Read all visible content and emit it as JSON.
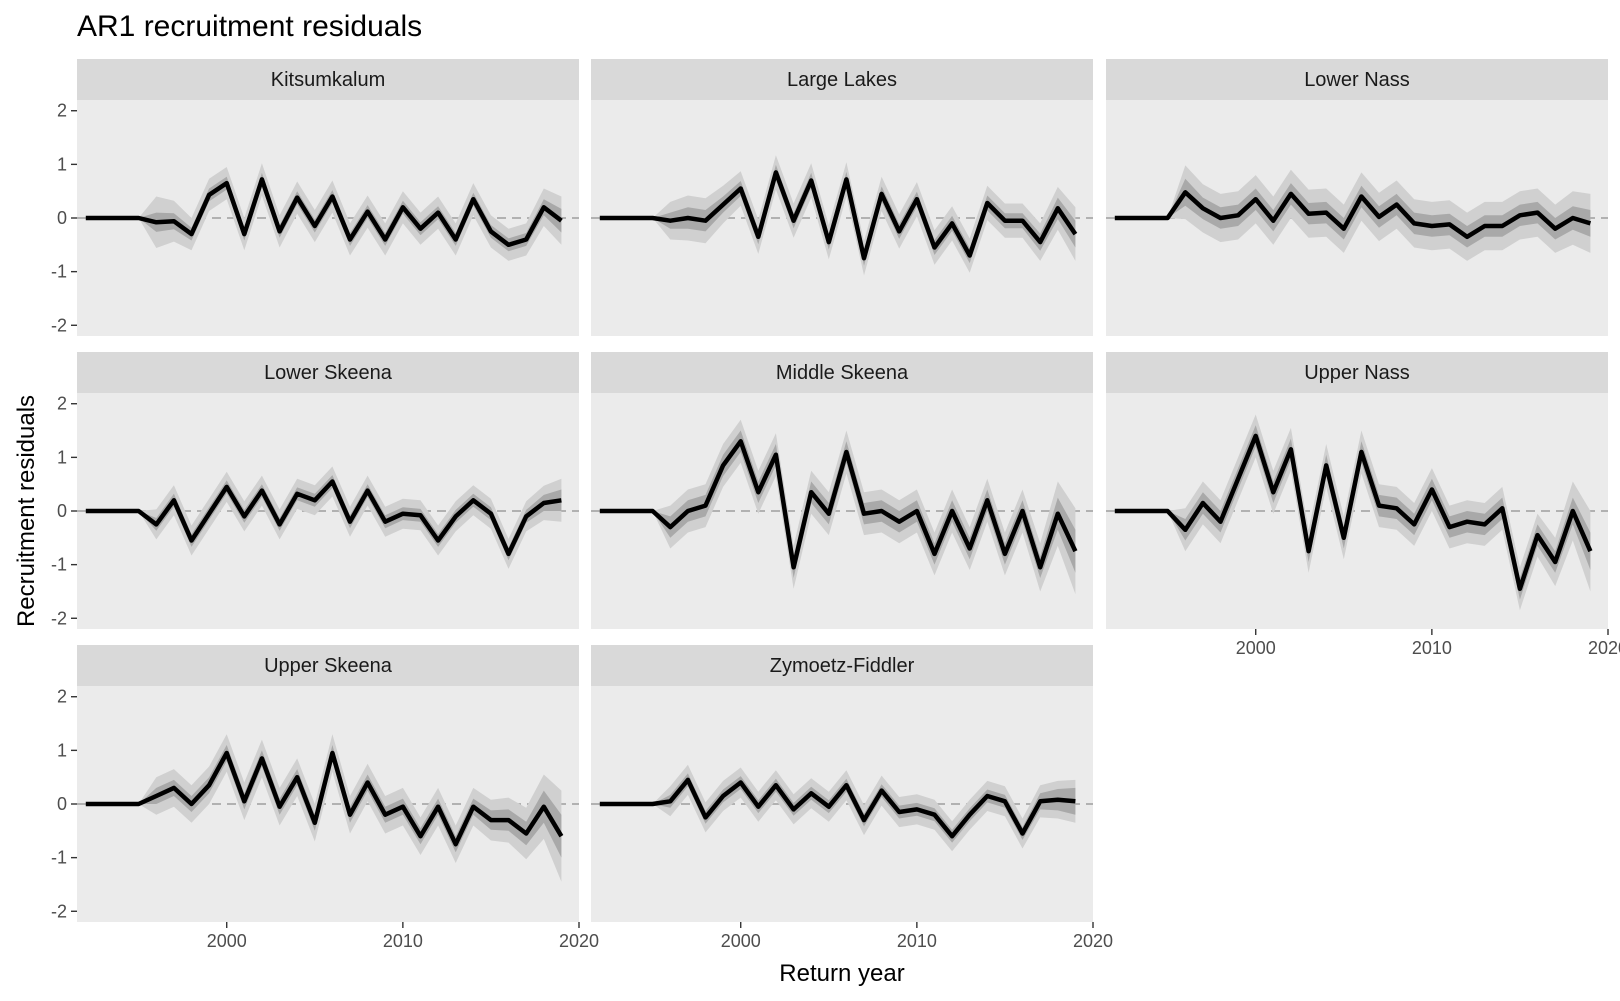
{
  "chart_data": {
    "type": "line",
    "title": "AR1 recruitment residuals",
    "xlabel": "Return year",
    "ylabel": "Recruitment residuals",
    "xlim": [
      1991.5,
      2020
    ],
    "ylim": [
      -2.2,
      2.2
    ],
    "x_ticks": [
      2000,
      2010,
      2020
    ],
    "y_ticks": [
      -2,
      -1,
      0,
      1,
      2
    ],
    "reference_line": 0,
    "grid": false,
    "x": [
      1992,
      1993,
      1994,
      1995,
      1996,
      1997,
      1998,
      1999,
      2000,
      2001,
      2002,
      2003,
      2004,
      2005,
      2006,
      2007,
      2008,
      2009,
      2010,
      2011,
      2012,
      2013,
      2014,
      2015,
      2016,
      2017,
      2018,
      2019
    ],
    "panels": [
      {
        "name": "Kitsumkalum",
        "values": [
          0,
          0,
          0,
          0,
          -0.08,
          -0.06,
          -0.3,
          0.43,
          0.65,
          -0.3,
          0.72,
          -0.25,
          0.38,
          -0.15,
          0.4,
          -0.4,
          0.12,
          -0.4,
          0.2,
          -0.2,
          0.1,
          -0.4,
          0.35,
          -0.25,
          -0.5,
          -0.4,
          0.2,
          -0.05
        ],
        "band_inner": [
          0,
          0,
          0,
          0,
          0.18,
          0.15,
          0.12,
          0.12,
          0.12,
          0.12,
          0.12,
          0.12,
          0.12,
          0.12,
          0.12,
          0.12,
          0.12,
          0.12,
          0.12,
          0.12,
          0.12,
          0.12,
          0.12,
          0.12,
          0.12,
          0.12,
          0.15,
          0.22
        ],
        "band_outer": [
          0,
          0,
          0,
          0,
          0.48,
          0.38,
          0.3,
          0.3,
          0.3,
          0.3,
          0.3,
          0.3,
          0.3,
          0.3,
          0.3,
          0.3,
          0.3,
          0.3,
          0.3,
          0.3,
          0.3,
          0.3,
          0.3,
          0.3,
          0.3,
          0.3,
          0.35,
          0.45
        ]
      },
      {
        "name": "Large Lakes",
        "values": [
          0,
          0,
          0,
          0,
          -0.05,
          0,
          -0.05,
          0.25,
          0.55,
          -0.35,
          0.85,
          -0.05,
          0.7,
          -0.45,
          0.72,
          -0.75,
          0.45,
          -0.25,
          0.35,
          -0.55,
          -0.1,
          -0.7,
          0.28,
          -0.05,
          -0.05,
          -0.45,
          0.18,
          -0.3
        ],
        "band_inner": [
          0,
          0,
          0,
          0,
          0.15,
          0.2,
          0.2,
          0.15,
          0.14,
          0.14,
          0.14,
          0.14,
          0.14,
          0.14,
          0.14,
          0.14,
          0.14,
          0.14,
          0.14,
          0.14,
          0.14,
          0.14,
          0.14,
          0.14,
          0.14,
          0.16,
          0.2,
          0.25
        ],
        "band_outer": [
          0,
          0,
          0,
          0,
          0.35,
          0.42,
          0.42,
          0.35,
          0.32,
          0.32,
          0.32,
          0.32,
          0.32,
          0.32,
          0.32,
          0.32,
          0.32,
          0.32,
          0.32,
          0.32,
          0.32,
          0.32,
          0.32,
          0.32,
          0.32,
          0.35,
          0.4,
          0.5
        ]
      },
      {
        "name": "Lower Nass",
        "values": [
          0,
          0,
          0,
          0,
          0.48,
          0.18,
          0,
          0.05,
          0.35,
          -0.05,
          0.45,
          0.08,
          0.1,
          -0.2,
          0.4,
          0.02,
          0.25,
          -0.1,
          -0.15,
          -0.12,
          -0.35,
          -0.15,
          -0.15,
          0.05,
          0.1,
          -0.2,
          0,
          -0.1
        ],
        "band_inner": [
          0,
          0,
          0,
          0,
          0.25,
          0.2,
          0.2,
          0.2,
          0.2,
          0.2,
          0.2,
          0.2,
          0.2,
          0.2,
          0.2,
          0.2,
          0.2,
          0.2,
          0.2,
          0.2,
          0.2,
          0.2,
          0.2,
          0.2,
          0.2,
          0.2,
          0.22,
          0.25
        ],
        "band_outer": [
          0,
          0,
          0,
          0,
          0.5,
          0.45,
          0.45,
          0.45,
          0.45,
          0.45,
          0.45,
          0.45,
          0.45,
          0.45,
          0.45,
          0.45,
          0.45,
          0.45,
          0.45,
          0.45,
          0.45,
          0.45,
          0.45,
          0.45,
          0.45,
          0.45,
          0.5,
          0.55
        ]
      },
      {
        "name": "Lower Skeena",
        "values": [
          0,
          0,
          0,
          0,
          -0.25,
          0.2,
          -0.55,
          -0.05,
          0.45,
          -0.1,
          0.38,
          -0.25,
          0.32,
          0.2,
          0.55,
          -0.2,
          0.38,
          -0.2,
          -0.05,
          -0.08,
          -0.55,
          -0.1,
          0.2,
          -0.05,
          -0.8,
          -0.1,
          0.15,
          0.2
        ],
        "band_inner": [
          0,
          0,
          0,
          0,
          0.12,
          0.12,
          0.12,
          0.12,
          0.12,
          0.12,
          0.12,
          0.12,
          0.12,
          0.12,
          0.12,
          0.12,
          0.12,
          0.12,
          0.12,
          0.12,
          0.12,
          0.12,
          0.12,
          0.12,
          0.12,
          0.12,
          0.15,
          0.2
        ],
        "band_outer": [
          0,
          0,
          0,
          0,
          0.28,
          0.28,
          0.28,
          0.28,
          0.28,
          0.28,
          0.28,
          0.28,
          0.28,
          0.28,
          0.28,
          0.28,
          0.28,
          0.28,
          0.28,
          0.28,
          0.28,
          0.28,
          0.28,
          0.28,
          0.28,
          0.28,
          0.32,
          0.4
        ]
      },
      {
        "name": "Middle Skeena",
        "values": [
          0,
          0,
          0,
          0,
          -0.3,
          0,
          0.1,
          0.85,
          1.3,
          0.35,
          1.05,
          -1.05,
          0.35,
          -0.05,
          1.1,
          -0.05,
          0,
          -0.2,
          0,
          -0.8,
          0,
          -0.7,
          0.2,
          -0.8,
          0,
          -1.05,
          -0.05,
          -0.75
        ],
        "band_inner": [
          0,
          0,
          0,
          0,
          0.2,
          0.2,
          0.2,
          0.2,
          0.2,
          0.2,
          0.2,
          0.2,
          0.2,
          0.2,
          0.2,
          0.2,
          0.2,
          0.2,
          0.2,
          0.2,
          0.2,
          0.2,
          0.2,
          0.2,
          0.2,
          0.2,
          0.3,
          0.4
        ],
        "band_outer": [
          0,
          0,
          0,
          0,
          0.4,
          0.4,
          0.4,
          0.4,
          0.4,
          0.4,
          0.4,
          0.4,
          0.4,
          0.4,
          0.4,
          0.4,
          0.4,
          0.4,
          0.4,
          0.4,
          0.4,
          0.4,
          0.4,
          0.4,
          0.4,
          0.45,
          0.6,
          0.8
        ]
      },
      {
        "name": "Upper Nass",
        "values": [
          0,
          0,
          0,
          0,
          -0.35,
          0.15,
          -0.2,
          0.6,
          1.4,
          0.35,
          1.15,
          -0.75,
          0.85,
          -0.5,
          1.1,
          0.1,
          0.05,
          -0.25,
          0.4,
          -0.3,
          -0.2,
          -0.25,
          0.05,
          -1.45,
          -0.45,
          -0.95,
          0,
          -0.75
        ],
        "band_inner": [
          0,
          0,
          0,
          0,
          0.2,
          0.2,
          0.2,
          0.2,
          0.2,
          0.2,
          0.2,
          0.2,
          0.2,
          0.2,
          0.2,
          0.2,
          0.2,
          0.2,
          0.2,
          0.2,
          0.2,
          0.2,
          0.2,
          0.2,
          0.2,
          0.2,
          0.25,
          0.35
        ],
        "band_outer": [
          0,
          0,
          0,
          0,
          0.4,
          0.4,
          0.4,
          0.4,
          0.4,
          0.4,
          0.4,
          0.4,
          0.4,
          0.4,
          0.4,
          0.4,
          0.4,
          0.4,
          0.4,
          0.4,
          0.4,
          0.4,
          0.4,
          0.4,
          0.4,
          0.45,
          0.55,
          0.75
        ]
      },
      {
        "name": "Upper Skeena",
        "values": [
          0,
          0,
          0,
          0,
          0.15,
          0.3,
          0,
          0.35,
          0.95,
          0.05,
          0.85,
          -0.05,
          0.5,
          -0.35,
          0.95,
          -0.2,
          0.4,
          -0.2,
          -0.05,
          -0.6,
          -0.05,
          -0.75,
          -0.05,
          -0.3,
          -0.3,
          -0.55,
          -0.05,
          -0.6
        ],
        "band_inner": [
          0,
          0,
          0,
          0,
          0.15,
          0.15,
          0.15,
          0.15,
          0.15,
          0.15,
          0.15,
          0.15,
          0.15,
          0.15,
          0.15,
          0.15,
          0.15,
          0.15,
          0.15,
          0.15,
          0.15,
          0.15,
          0.15,
          0.18,
          0.2,
          0.22,
          0.3,
          0.4
        ],
        "band_outer": [
          0,
          0,
          0,
          0,
          0.35,
          0.35,
          0.35,
          0.35,
          0.35,
          0.35,
          0.35,
          0.35,
          0.35,
          0.35,
          0.35,
          0.35,
          0.35,
          0.35,
          0.35,
          0.35,
          0.35,
          0.35,
          0.35,
          0.38,
          0.42,
          0.48,
          0.6,
          0.85
        ]
      },
      {
        "name": "Zymoetz-Fiddler",
        "values": [
          0,
          0,
          0,
          0,
          0.05,
          0.45,
          -0.25,
          0.15,
          0.4,
          -0.05,
          0.35,
          -0.1,
          0.2,
          -0.05,
          0.35,
          -0.3,
          0.25,
          -0.15,
          -0.1,
          -0.2,
          -0.6,
          -0.2,
          0.15,
          0.05,
          -0.55,
          0.05,
          0.08,
          0.05
        ],
        "band_inner": [
          0,
          0,
          0,
          0,
          0.12,
          0.12,
          0.12,
          0.12,
          0.12,
          0.12,
          0.12,
          0.12,
          0.12,
          0.12,
          0.12,
          0.12,
          0.12,
          0.12,
          0.12,
          0.12,
          0.12,
          0.12,
          0.12,
          0.12,
          0.12,
          0.15,
          0.2,
          0.25
        ],
        "band_outer": [
          0,
          0,
          0,
          0,
          0.28,
          0.28,
          0.28,
          0.28,
          0.28,
          0.28,
          0.28,
          0.28,
          0.28,
          0.28,
          0.28,
          0.28,
          0.28,
          0.28,
          0.28,
          0.28,
          0.28,
          0.28,
          0.28,
          0.28,
          0.28,
          0.3,
          0.35,
          0.4
        ]
      }
    ],
    "colors": {
      "panel_bg": "#ebebeb",
      "strip_bg": "#d9d9d9",
      "line": "#000000",
      "band_outer": "#d0d0d0",
      "band_inner": "#a9a9a9",
      "reference_line": "#9e9e9e"
    }
  }
}
